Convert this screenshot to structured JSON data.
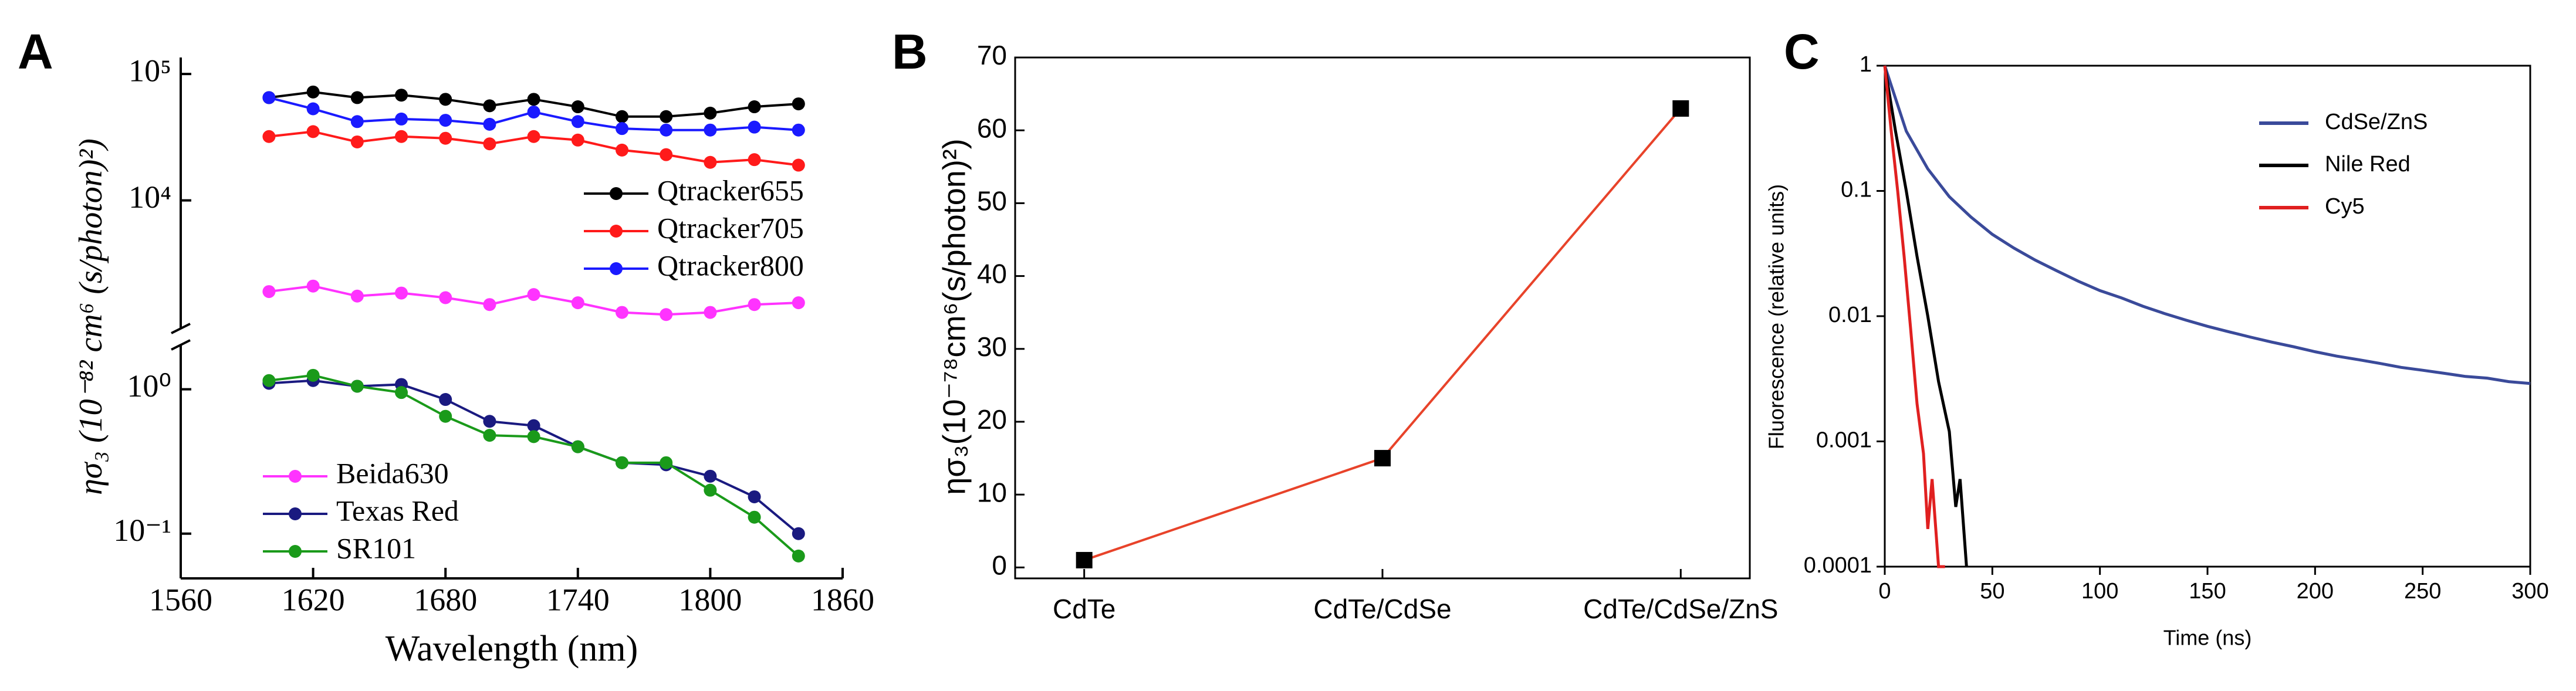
{
  "chart_data": [
    {
      "label": "A",
      "type": "line",
      "log_scale": true,
      "x_label": "Wavelength (nm)",
      "y_label": "ησ₃ (10⁻⁸² cm⁶ (s/photon)²)",
      "xlim": [
        1560,
        1860
      ],
      "xticks": [
        1560,
        1620,
        1680,
        1740,
        1800,
        1860
      ],
      "x": [
        1600,
        1620,
        1640,
        1660,
        1680,
        1700,
        1720,
        1740,
        1760,
        1780,
        1800,
        1820,
        1840
      ],
      "y_segments": [
        {
          "ylim": [
            0.049,
            2.03
          ],
          "yticks": [
            {
              "value": 0.1,
              "label": "10⁻¹"
            },
            {
              "value": 1,
              "label": "10⁰"
            }
          ]
        },
        {
          "ylim": [
            970,
            135000
          ],
          "yticks": [
            {
              "value": 10000,
              "label": "10⁴"
            },
            {
              "value": 100000,
              "label": "10⁵"
            }
          ]
        }
      ],
      "series": [
        {
          "name": "Qtracker655",
          "color": "#000000",
          "segment": 1,
          "values": [
            65000,
            72000,
            65000,
            68000,
            63000,
            56000,
            63000,
            55000,
            46000,
            46000,
            49000,
            55000,
            58000
          ]
        },
        {
          "name": "Qtracker705",
          "color": "#ff1a1a",
          "segment": 1,
          "values": [
            32000,
            35000,
            29000,
            32000,
            31000,
            28000,
            32000,
            30000,
            25000,
            23000,
            20000,
            21000,
            19000
          ]
        },
        {
          "name": "Qtracker800",
          "color": "#1a1aff",
          "segment": 1,
          "values": [
            65000,
            53000,
            42000,
            44000,
            43000,
            40000,
            50000,
            42000,
            37000,
            36000,
            36000,
            38000,
            36000
          ]
        },
        {
          "name": "Beida630",
          "color": "#ff33ff",
          "segment": 1,
          "values": [
            1900,
            2100,
            1750,
            1850,
            1700,
            1500,
            1800,
            1550,
            1300,
            1250,
            1300,
            1500,
            1550
          ]
        },
        {
          "name": "Texas Red",
          "color": "#1a1a80",
          "segment": 0,
          "values": [
            1.1,
            1.15,
            1.05,
            1.08,
            0.85,
            0.6,
            0.56,
            0.4,
            0.31,
            0.3,
            0.25,
            0.18,
            0.1
          ]
        },
        {
          "name": "SR101",
          "color": "#1a9a1a",
          "segment": 0,
          "values": [
            1.15,
            1.25,
            1.05,
            0.95,
            0.65,
            0.48,
            0.47,
            0.4,
            0.31,
            0.31,
            0.2,
            0.13,
            0.07
          ]
        }
      ]
    },
    {
      "label": "B",
      "type": "category-line",
      "y_label": "ησ₃(10⁻⁷⁸cm⁶(s/photon)²)",
      "categories": [
        "CdTe",
        "CdTe/CdSe",
        "CdTe/CdSe/ZnS"
      ],
      "values": [
        1,
        15,
        63
      ],
      "color": "#e8432a",
      "marker_color": "#000000",
      "ylim": [
        -1.5,
        70
      ],
      "yticks": [
        0,
        10,
        20,
        30,
        40,
        50,
        60,
        70
      ]
    },
    {
      "label": "C",
      "type": "log-line",
      "log_scale": true,
      "x_label": "Time (ns)",
      "y_label": "Fluorescence (relative units)",
      "xlim": [
        0,
        300
      ],
      "xticks": [
        0,
        50,
        100,
        150,
        200,
        250,
        300
      ],
      "ylim": [
        0.0001,
        1
      ],
      "yticks": [
        1,
        0.1,
        0.01,
        0.001,
        0.0001
      ],
      "series": [
        {
          "name": "CdSe/ZnS",
          "color": "#3a4a9a",
          "x": [
            0,
            10,
            20,
            30,
            40,
            50,
            60,
            70,
            80,
            90,
            100,
            110,
            120,
            130,
            140,
            150,
            160,
            170,
            180,
            190,
            200,
            210,
            220,
            230,
            240,
            250,
            260,
            270,
            280,
            290,
            300
          ],
          "values": [
            1,
            0.3,
            0.15,
            0.09,
            0.062,
            0.045,
            0.035,
            0.028,
            0.023,
            0.019,
            0.016,
            0.014,
            0.012,
            0.0105,
            0.0093,
            0.0083,
            0.0075,
            0.0068,
            0.0062,
            0.0057,
            0.0052,
            0.0048,
            0.0045,
            0.0042,
            0.0039,
            0.0037,
            0.0035,
            0.0033,
            0.0032,
            0.003,
            0.0029
          ]
        },
        {
          "name": "Nile Red",
          "color": "#000000",
          "x": [
            0,
            5,
            10,
            15,
            20,
            25,
            30,
            33,
            35,
            38
          ],
          "values": [
            1,
            0.3,
            0.1,
            0.03,
            0.01,
            0.003,
            0.0012,
            0.0003,
            0.0005,
            0.0001
          ]
        },
        {
          "name": "Cy5",
          "color": "#e02020",
          "x": [
            0,
            3,
            6,
            9,
            12,
            15,
            18,
            20,
            22,
            25,
            28
          ],
          "values": [
            1,
            0.3,
            0.1,
            0.03,
            0.008,
            0.002,
            0.0008,
            0.0002,
            0.0005,
            0.0001,
            0.0001
          ]
        }
      ]
    }
  ]
}
